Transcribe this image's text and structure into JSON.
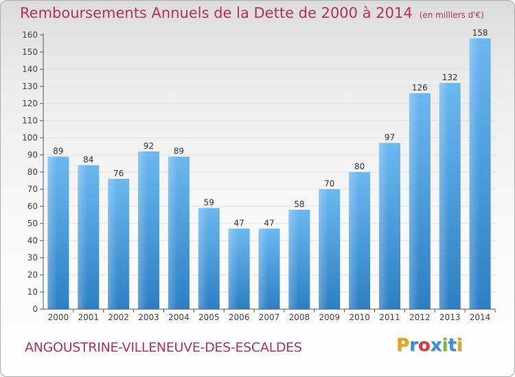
{
  "header": {
    "title": "Remboursements Annuels de la Dette de 2000 à 2014",
    "subtitle": "(en milliers d'€)"
  },
  "footer": {
    "commune": "ANGOUSTRINE-VILLENEUVE-DES-ESCALDES",
    "brand": "Proxiti",
    "brand_colors": [
      "#e8a317",
      "#3a8fd8",
      "#d83a3a",
      "#3a8fd8",
      "#7cbb3a",
      "#3a8fd8",
      "#e8a317"
    ]
  },
  "colors": {
    "title": "#b5305f",
    "bar_top": "#6bb8f0",
    "bar_bottom": "#2d7fc4",
    "grid": "#e0e0e0",
    "axis": "#555555"
  },
  "chart_data": {
    "type": "bar",
    "title": "Remboursements Annuels de la Dette de 2000 à 2014",
    "subtitle": "(en milliers d'€)",
    "xlabel": "",
    "ylabel": "",
    "categories": [
      "2000",
      "2001",
      "2002",
      "2003",
      "2004",
      "2005",
      "2006",
      "2007",
      "2008",
      "2009",
      "2010",
      "2011",
      "2012",
      "2013",
      "2014"
    ],
    "values": [
      89,
      84,
      76,
      92,
      89,
      59,
      47,
      47,
      58,
      70,
      80,
      97,
      126,
      132,
      158
    ],
    "ylim": [
      0,
      160
    ],
    "yticks": [
      0,
      10,
      20,
      30,
      40,
      50,
      60,
      70,
      80,
      90,
      100,
      110,
      120,
      130,
      140,
      150,
      160
    ],
    "grid": true,
    "legend": "none"
  }
}
